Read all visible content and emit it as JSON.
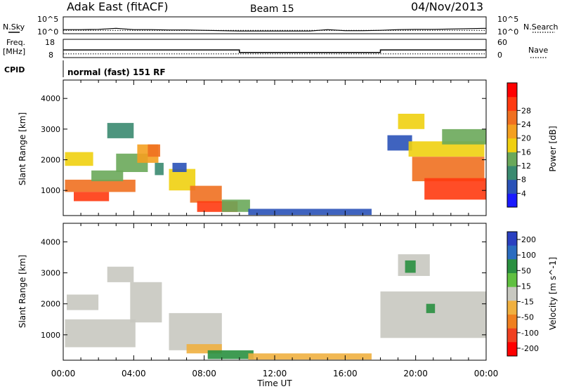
{
  "header": {
    "title": "Adak East (fitACF)",
    "beam": "Beam 15",
    "date": "04/Nov/2013"
  },
  "colors": {
    "power_scale": [
      "#1a1aff",
      "#2a52b8",
      "#3a8a70",
      "#6aa85a",
      "#f0d010",
      "#f4a020",
      "#f07020",
      "#ff3a10",
      "#ff0000"
    ],
    "velocity_scale": [
      "#2a40c0",
      "#2a6cc0",
      "#2a9040",
      "#60c040",
      "#c8c8c0",
      "#f0b040",
      "#f08020",
      "#f04020",
      "#ff0000"
    ]
  },
  "labels": {
    "n_sky": "N.Sky",
    "n_search": "N.Search",
    "freq_line1": "Freq.",
    "freq_line2": "[MHz]",
    "nave": "Nave",
    "cpid": "CPID",
    "cpid_value": "normal (fast) 151 RF",
    "noise_tick_hi": "10^5",
    "noise_tick_lo": "10^0",
    "freq_tick_hi": "18",
    "freq_tick_lo": "8",
    "nave_tick_hi": "60",
    "nave_tick_lo": "0",
    "x_axis_label": "Time UT"
  },
  "chart_data": [
    {
      "type": "line",
      "panel": "noise",
      "x": [
        0,
        1,
        2,
        3,
        4,
        5,
        6,
        7,
        8,
        9,
        10,
        11,
        12,
        13,
        14,
        15,
        16,
        17,
        18,
        19,
        20,
        21,
        22,
        23,
        24
      ],
      "series": [
        {
          "name": "N.Sky",
          "values": [
            1.2,
            1.2,
            1.3,
            1.6,
            1.2,
            1.2,
            1.1,
            1.1,
            1.0,
            0.9,
            0.8,
            0.8,
            0.8,
            0.8,
            0.8,
            1.2,
            0.9,
            0.9,
            1.0,
            1.2,
            1.3,
            1.3,
            1.4,
            1.5,
            1.6
          ]
        },
        {
          "name": "N.Search",
          "values": [
            1.0,
            1.0,
            1.0,
            1.0,
            1.0,
            1.0,
            1.0,
            1.0,
            1.0,
            1.0,
            1.0,
            1.0,
            1.0,
            1.0,
            1.0,
            1.0,
            1.0,
            1.0,
            1.0,
            1.0,
            1.0,
            1.0,
            1.0,
            1.0,
            1.0
          ]
        }
      ],
      "ylim": [
        0,
        5
      ]
    },
    {
      "type": "line",
      "panel": "frequency",
      "x": [
        0,
        10,
        10,
        18,
        18,
        24
      ],
      "series": [
        {
          "name": "Freq.",
          "values": [
            12.2,
            12.2,
            10.8,
            10.8,
            12.2,
            12.2
          ]
        },
        {
          "name": "Nave",
          "values": [
            12,
            12,
            12,
            12,
            12,
            12
          ]
        }
      ],
      "ylim": [
        8,
        18
      ],
      "y2lim": [
        0,
        60
      ]
    },
    {
      "type": "heatmap",
      "panel": "power",
      "xlabel": "Time UT",
      "ylabel": "Slant Range [km]",
      "colorbar_label": "Power [dB]",
      "colorbar_ticks": [
        4,
        8,
        12,
        16,
        20,
        24,
        28
      ],
      "colorbar_range": [
        0,
        36
      ],
      "x_ticks": [
        "00:00",
        "04:00",
        "08:00",
        "12:00",
        "16:00",
        "20:00",
        "00:00"
      ],
      "y_ticks": [
        1000,
        2000,
        3000,
        4000
      ],
      "xlim": [
        0,
        24
      ],
      "ylim": [
        180,
        4600
      ],
      "cells": [
        {
          "x": 0.1,
          "w": 1.6,
          "y": 1800,
          "h": 450,
          "v": 16
        },
        {
          "x": 0.1,
          "w": 4.0,
          "y": 950,
          "h": 400,
          "v": 24
        },
        {
          "x": 0.6,
          "w": 2.0,
          "y": 650,
          "h": 300,
          "v": 28
        },
        {
          "x": 1.6,
          "w": 1.8,
          "y": 1300,
          "h": 350,
          "v": 12
        },
        {
          "x": 2.5,
          "w": 1.5,
          "y": 2700,
          "h": 500,
          "v": 10
        },
        {
          "x": 3.0,
          "w": 1.8,
          "y": 1600,
          "h": 600,
          "v": 14
        },
        {
          "x": 4.2,
          "w": 1.2,
          "y": 1900,
          "h": 600,
          "v": 20
        },
        {
          "x": 4.8,
          "w": 0.7,
          "y": 2100,
          "h": 400,
          "v": 26
        },
        {
          "x": 5.2,
          "w": 0.5,
          "y": 1500,
          "h": 400,
          "v": 8
        },
        {
          "x": 6.0,
          "w": 1.5,
          "y": 1000,
          "h": 700,
          "v": 18
        },
        {
          "x": 6.2,
          "w": 0.8,
          "y": 1600,
          "h": 300,
          "v": 6
        },
        {
          "x": 7.2,
          "w": 1.8,
          "y": 600,
          "h": 550,
          "v": 24
        },
        {
          "x": 7.6,
          "w": 2.3,
          "y": 300,
          "h": 350,
          "v": 28
        },
        {
          "x": 9.0,
          "w": 1.6,
          "y": 300,
          "h": 400,
          "v": 12
        },
        {
          "x": 10.5,
          "w": 7.0,
          "y": 200,
          "h": 200,
          "v": 4
        },
        {
          "x": 18.4,
          "w": 1.4,
          "y": 2300,
          "h": 500,
          "v": 6
        },
        {
          "x": 19.0,
          "w": 1.5,
          "y": 3000,
          "h": 500,
          "v": 18
        },
        {
          "x": 19.6,
          "w": 4.3,
          "y": 2100,
          "h": 500,
          "v": 16
        },
        {
          "x": 19.8,
          "w": 4.1,
          "y": 1300,
          "h": 800,
          "v": 24
        },
        {
          "x": 20.5,
          "w": 3.5,
          "y": 700,
          "h": 700,
          "v": 30
        },
        {
          "x": 21.5,
          "w": 2.5,
          "y": 2500,
          "h": 500,
          "v": 14
        }
      ]
    },
    {
      "type": "heatmap",
      "panel": "velocity",
      "xlabel": "Time UT",
      "ylabel": "Slant Range [km]",
      "colorbar_label": "Velocity [m s^-1]",
      "colorbar_ticks": [
        200,
        100,
        50,
        15,
        -15,
        -50,
        -100,
        -200
      ],
      "x_ticks": [
        "00:00",
        "04:00",
        "08:00",
        "12:00",
        "16:00",
        "20:00",
        "00:00"
      ],
      "y_ticks": [
        1000,
        2000,
        3000,
        4000
      ],
      "xlim": [
        0,
        24
      ],
      "ylim": [
        180,
        4600
      ],
      "cells": [
        {
          "x": 0.1,
          "w": 4.0,
          "y": 600,
          "h": 900,
          "v": 0
        },
        {
          "x": 0.2,
          "w": 1.8,
          "y": 1800,
          "h": 500,
          "v": 0
        },
        {
          "x": 2.5,
          "w": 1.5,
          "y": 2700,
          "h": 500,
          "v": 0
        },
        {
          "x": 3.8,
          "w": 1.8,
          "y": 1400,
          "h": 1300,
          "v": 0
        },
        {
          "x": 6.0,
          "w": 3.0,
          "y": 500,
          "h": 1200,
          "v": 0
        },
        {
          "x": 7.0,
          "w": 2.0,
          "y": 400,
          "h": 300,
          "v": -60
        },
        {
          "x": 8.2,
          "w": 2.6,
          "y": 220,
          "h": 280,
          "v": 60
        },
        {
          "x": 10.5,
          "w": 7.0,
          "y": 200,
          "h": 200,
          "v": -60
        },
        {
          "x": 18.0,
          "w": 6.0,
          "y": 900,
          "h": 1500,
          "v": 0
        },
        {
          "x": 19.0,
          "w": 1.8,
          "y": 2900,
          "h": 700,
          "v": 0
        },
        {
          "x": 19.4,
          "w": 0.6,
          "y": 3000,
          "h": 400,
          "v": 60
        },
        {
          "x": 20.6,
          "w": 0.5,
          "y": 1700,
          "h": 300,
          "v": 60
        }
      ]
    }
  ]
}
